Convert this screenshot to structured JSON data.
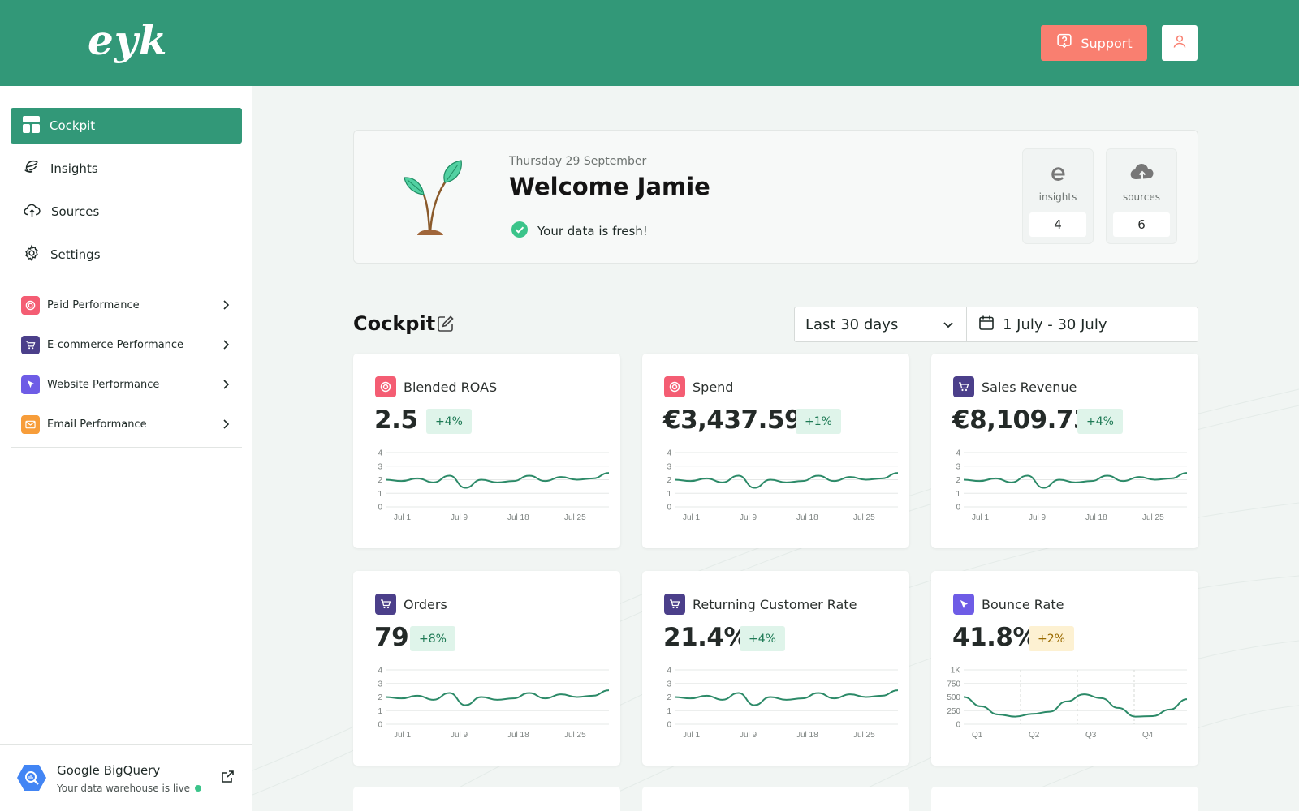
{
  "brand": {
    "logo": "eyk",
    "primary": "#329878",
    "accent": "#f97f70"
  },
  "header": {
    "support_label": "Support"
  },
  "sidebar": {
    "nav": [
      {
        "label": "Cockpit",
        "icon": "dashboard-icon",
        "active": true
      },
      {
        "label": "Insights",
        "icon": "insights-icon",
        "active": false
      },
      {
        "label": "Sources",
        "icon": "cloud-upload-icon",
        "active": false
      },
      {
        "label": "Settings",
        "icon": "gear-icon",
        "active": false
      }
    ],
    "categories": [
      {
        "label": "Paid Performance",
        "icon": "target-icon",
        "color": "#f45d73"
      },
      {
        "label": "E-commerce Performance",
        "icon": "cart-icon",
        "color": "#4b3f8a"
      },
      {
        "label": "Website Performance",
        "icon": "cursor-icon",
        "color": "#6e5ce6"
      },
      {
        "label": "Email Performance",
        "icon": "mail-icon",
        "color": "#f79d3a"
      }
    ],
    "warehouse": {
      "title": "Google BigQuery",
      "status": "Your data warehouse is live"
    }
  },
  "welcome": {
    "date": "Thursday 29 September",
    "title": "Welcome Jamie",
    "status": "Your data is fresh!",
    "stats": [
      {
        "label": "insights",
        "value": "4",
        "icon": "eyk-mark-icon"
      },
      {
        "label": "sources",
        "value": "6",
        "icon": "cloud-upload-icon"
      }
    ]
  },
  "cockpit": {
    "title": "Cockpit",
    "range": "Last 30 days",
    "dates": "1 July - 30 July"
  },
  "metrics": [
    {
      "label": "Blended ROAS",
      "value": "2.5",
      "change": "+4%",
      "trend": "up",
      "icon": "target-icon",
      "icon_color": "#f45d73",
      "chart": {
        "type": "line",
        "y_ticks": [
          "4",
          "3",
          "2",
          "1",
          "0"
        ],
        "x_ticks": [
          "Jul 1",
          "Jul 9",
          "Jul 18",
          "Jul 25"
        ],
        "values": [
          2.0,
          1.9,
          2.1,
          1.8,
          2.3,
          1.4,
          2.0,
          1.8,
          1.9,
          2.3,
          1.9,
          2.2,
          2.0,
          2.1,
          2.5
        ]
      }
    },
    {
      "label": "Spend",
      "value": "€3,437.59",
      "change": "+1%",
      "trend": "up",
      "icon": "target-icon",
      "icon_color": "#f45d73",
      "chart": {
        "type": "line",
        "y_ticks": [
          "4",
          "3",
          "2",
          "1",
          "0"
        ],
        "x_ticks": [
          "Jul 1",
          "Jul 9",
          "Jul 18",
          "Jul 25"
        ],
        "values": [
          2.0,
          1.9,
          2.1,
          1.8,
          2.3,
          1.4,
          2.0,
          1.8,
          1.9,
          2.3,
          1.9,
          2.2,
          2.0,
          2.1,
          2.5
        ]
      }
    },
    {
      "label": "Sales Revenue",
      "value": "€8,109.73",
      "change": "+4%",
      "trend": "up",
      "icon": "cart-icon",
      "icon_color": "#4b3f8a",
      "chart": {
        "type": "line",
        "y_ticks": [
          "4",
          "3",
          "2",
          "1",
          "0"
        ],
        "x_ticks": [
          "Jul 1",
          "Jul 9",
          "Jul 18",
          "Jul 25"
        ],
        "values": [
          2.0,
          1.9,
          2.1,
          1.8,
          2.3,
          1.4,
          2.0,
          1.8,
          1.9,
          2.3,
          1.9,
          2.2,
          2.0,
          2.1,
          2.5
        ]
      }
    },
    {
      "label": "Orders",
      "value": "79",
      "change": "+8%",
      "trend": "up",
      "icon": "cart-icon",
      "icon_color": "#4b3f8a",
      "chart": {
        "type": "line",
        "y_ticks": [
          "4",
          "3",
          "2",
          "1",
          "0"
        ],
        "x_ticks": [
          "Jul 1",
          "Jul 9",
          "Jul 18",
          "Jul 25"
        ],
        "values": [
          2.0,
          1.9,
          2.1,
          1.8,
          2.3,
          1.4,
          2.0,
          1.8,
          1.9,
          2.3,
          1.9,
          2.2,
          2.0,
          2.1,
          2.5
        ]
      }
    },
    {
      "label": "Returning Customer Rate",
      "value": "21.4%",
      "change": "+4%",
      "trend": "up",
      "icon": "cart-icon",
      "icon_color": "#4b3f8a",
      "chart": {
        "type": "line",
        "y_ticks": [
          "4",
          "3",
          "2",
          "1",
          "0"
        ],
        "x_ticks": [
          "Jul 1",
          "Jul 9",
          "Jul 18",
          "Jul 25"
        ],
        "values": [
          2.0,
          1.9,
          2.1,
          1.8,
          2.3,
          1.4,
          2.0,
          1.8,
          1.9,
          2.3,
          1.9,
          2.2,
          2.0,
          2.1,
          2.5
        ]
      }
    },
    {
      "label": "Bounce Rate",
      "value": "41.8%",
      "change": "+2%",
      "trend": "warn",
      "icon": "cursor-icon",
      "icon_color": "#6e5ce6",
      "chart": {
        "type": "line",
        "y_ticks": [
          "1K",
          "750",
          "500",
          "250",
          "0"
        ],
        "x_ticks": [
          "Q1",
          "Q2",
          "Q3",
          "Q4"
        ],
        "y_max": 1000,
        "values": [
          500,
          330,
          180,
          140,
          190,
          230,
          420,
          550,
          480,
          300,
          140,
          150,
          270,
          460
        ]
      }
    }
  ]
}
